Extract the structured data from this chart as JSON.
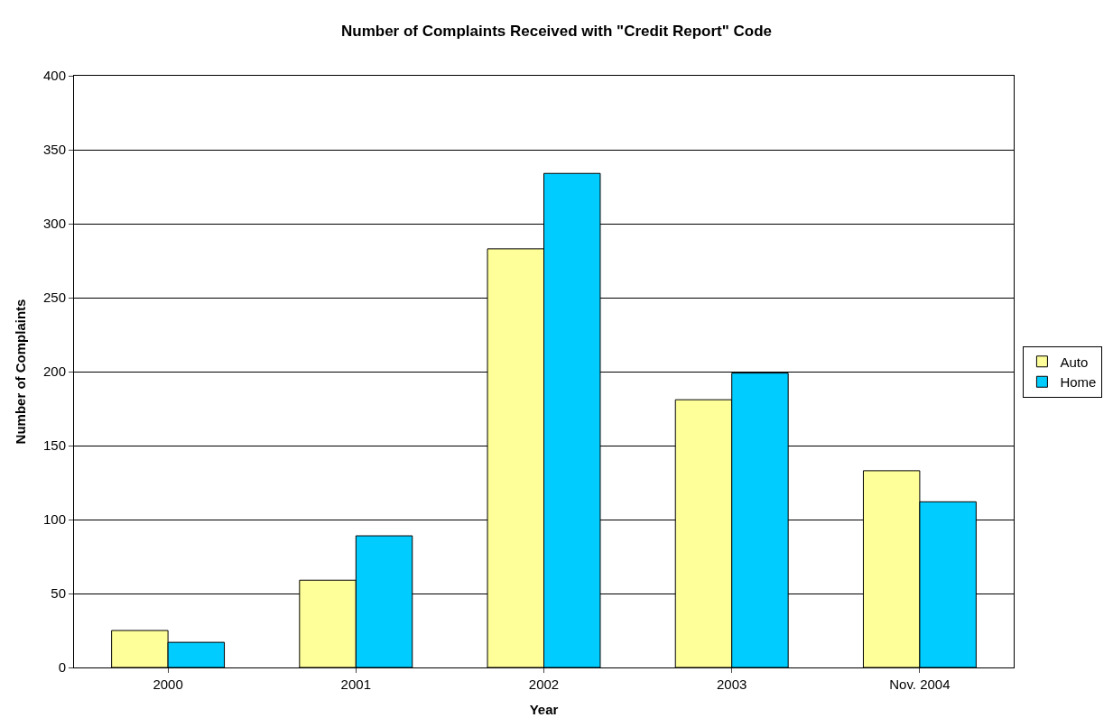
{
  "chart_data": {
    "type": "bar",
    "title": "Number of Complaints Received with \"Credit Report\" Code",
    "xlabel": "Year",
    "ylabel": "Number of Complaints",
    "categories": [
      "2000",
      "2001",
      "2002",
      "2003",
      "Nov. 2004"
    ],
    "series": [
      {
        "name": "Auto",
        "color": "#ffff99",
        "values": [
          25,
          59,
          283,
          181,
          133
        ]
      },
      {
        "name": "Home",
        "color": "#00ccff",
        "values": [
          17,
          89,
          334,
          199,
          112
        ]
      }
    ],
    "ylim": [
      0,
      400
    ],
    "yticks": [
      0,
      50,
      100,
      150,
      200,
      250,
      300,
      350,
      400
    ],
    "grid": "y",
    "legend": "right"
  }
}
